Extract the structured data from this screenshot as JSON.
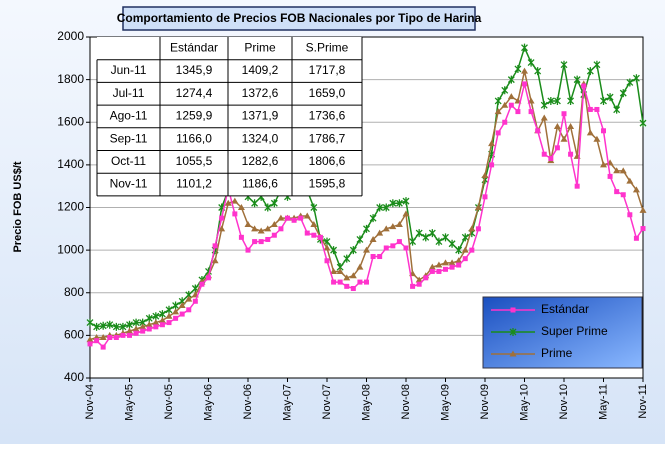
{
  "chart_data": {
    "type": "line",
    "title": "Comportamiento de Precios FOB Nacionales por Tipo de Harina",
    "y_label": "Precio FOB US$/t",
    "categories": [
      "Nov-04",
      null,
      null,
      null,
      null,
      null,
      "May-05",
      null,
      null,
      null,
      null,
      null,
      "Nov-05",
      null,
      null,
      null,
      null,
      null,
      "May-06",
      null,
      null,
      null,
      null,
      null,
      "Nov-06",
      null,
      null,
      null,
      null,
      null,
      "May-07",
      null,
      null,
      null,
      null,
      null,
      "Nov-07",
      null,
      null,
      null,
      null,
      null,
      "May-08",
      null,
      null,
      null,
      null,
      null,
      "Nov-08",
      null,
      null,
      null,
      null,
      null,
      "May-09",
      null,
      null,
      null,
      null,
      null,
      "Nov-09",
      null,
      null,
      null,
      null,
      null,
      "May-10",
      null,
      null,
      null,
      null,
      null,
      "Nov-10",
      null,
      null,
      null,
      null,
      null,
      "May-11",
      null,
      null,
      null,
      null,
      null,
      "Nov-11"
    ],
    "series": [
      {
        "name": "Estándar",
        "color": "#ff33cc",
        "marker": "square",
        "values": [
          560,
          575,
          545,
          590,
          590,
          600,
          600,
          610,
          620,
          630,
          640,
          650,
          660,
          680,
          700,
          720,
          760,
          840,
          870,
          1020,
          1150,
          1290,
          1170,
          1060,
          1000,
          1040,
          1040,
          1050,
          1070,
          1100,
          1150,
          1140,
          1150,
          1080,
          1070,
          1060,
          950,
          850,
          850,
          830,
          820,
          850,
          850,
          970,
          970,
          1010,
          1020,
          1040,
          1010,
          830,
          840,
          870,
          900,
          900,
          910,
          920,
          930,
          960,
          1000,
          1100,
          1250,
          1400,
          1550,
          1600,
          1680,
          1650,
          1780,
          1650,
          1560,
          1450,
          1430,
          1480,
          1640,
          1450,
          1300,
          1770,
          1660,
          1660,
          1560,
          1345.9,
          1274.4,
          1259.9,
          1166.0,
          1055.5,
          1101.2
        ]
      },
      {
        "name": "Super Prime",
        "color": "#1a8c1a",
        "marker": "star",
        "values": [
          660,
          640,
          645,
          650,
          640,
          640,
          650,
          660,
          660,
          680,
          690,
          700,
          720,
          740,
          760,
          790,
          820,
          860,
          900,
          1000,
          1200,
          1280,
          1420,
          1300,
          1250,
          1220,
          1250,
          1200,
          1220,
          1280,
          1250,
          1280,
          1300,
          1280,
          1200,
          1050,
          1040,
          1000,
          920,
          960,
          1000,
          1050,
          1100,
          1150,
          1200,
          1200,
          1220,
          1220,
          1230,
          1040,
          1080,
          1060,
          1080,
          1040,
          1060,
          1030,
          1000,
          1060,
          1080,
          1200,
          1330,
          1450,
          1700,
          1750,
          1800,
          1850,
          1950,
          1880,
          1840,
          1680,
          1700,
          1700,
          1870,
          1700,
          1800,
          1730,
          1840,
          1870,
          1700,
          1717.8,
          1659.0,
          1736.6,
          1786.7,
          1806.6,
          1595.8
        ]
      },
      {
        "name": "Prime",
        "color": "#a0703a",
        "marker": "triangle",
        "values": [
          580,
          590,
          590,
          600,
          600,
          610,
          620,
          630,
          640,
          650,
          660,
          670,
          690,
          710,
          740,
          770,
          790,
          850,
          880,
          950,
          1100,
          1220,
          1230,
          1200,
          1120,
          1100,
          1090,
          1100,
          1120,
          1150,
          1150,
          1150,
          1160,
          1160,
          1120,
          1060,
          1010,
          900,
          900,
          870,
          880,
          920,
          1000,
          1050,
          1080,
          1100,
          1110,
          1120,
          1170,
          890,
          860,
          880,
          920,
          930,
          940,
          940,
          950,
          1000,
          1100,
          1200,
          1350,
          1500,
          1650,
          1680,
          1720,
          1700,
          1840,
          1700,
          1560,
          1620,
          1420,
          1580,
          1520,
          1580,
          1440,
          1780,
          1550,
          1520,
          1400,
          1409.2,
          1372.6,
          1371.9,
          1324.0,
          1282.6,
          1186.6
        ]
      }
    ],
    "ylim": [
      400,
      2000
    ],
    "yticks": [
      400,
      600,
      800,
      1000,
      1200,
      1400,
      1600,
      1800,
      2000
    ],
    "grid": true,
    "legend": "lower right",
    "table": {
      "headers": [
        "Estándar",
        "Prime",
        "S.Prime"
      ],
      "rows": [
        [
          "Jun-11",
          "1345,9",
          "1409,2",
          "1717,8"
        ],
        [
          "Jul-11",
          "1274,4",
          "1372,6",
          "1659,0"
        ],
        [
          "Ago-11",
          "1259,9",
          "1371,9",
          "1736,6"
        ],
        [
          "Sep-11",
          "1166,0",
          "1324,0",
          "1786,7"
        ],
        [
          "Oct-11",
          "1055,5",
          "1282,6",
          "1806,6"
        ],
        [
          "Nov-11",
          "1101,2",
          "1186,6",
          "1595,8"
        ]
      ]
    }
  }
}
